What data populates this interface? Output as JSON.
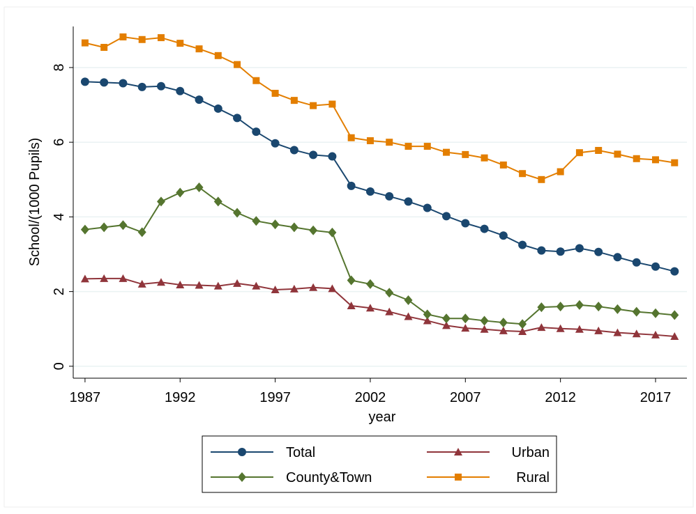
{
  "chart_data": {
    "type": "line",
    "x": [
      1987,
      1988,
      1989,
      1990,
      1991,
      1992,
      1993,
      1994,
      1995,
      1996,
      1997,
      1998,
      1999,
      2000,
      2001,
      2002,
      2003,
      2004,
      2005,
      2006,
      2007,
      2008,
      2009,
      2010,
      2011,
      2012,
      2013,
      2014,
      2015,
      2016,
      2017,
      2018
    ],
    "series": [
      {
        "name": "Total",
        "color": "#1a476f",
        "marker": "circle",
        "values": [
          7.62,
          7.6,
          7.58,
          7.48,
          7.5,
          7.37,
          7.14,
          6.9,
          6.65,
          6.28,
          5.97,
          5.79,
          5.66,
          5.62,
          4.83,
          4.68,
          4.55,
          4.41,
          4.24,
          4.02,
          3.83,
          3.68,
          3.5,
          3.25,
          3.1,
          3.07,
          3.16,
          3.06,
          2.92,
          2.78,
          2.67,
          2.54
        ]
      },
      {
        "name": "Urban",
        "color": "#90353b",
        "marker": "triangle",
        "values": [
          2.34,
          2.35,
          2.35,
          2.2,
          2.25,
          2.18,
          2.17,
          2.15,
          2.22,
          2.15,
          2.05,
          2.07,
          2.11,
          2.08,
          1.62,
          1.56,
          1.46,
          1.33,
          1.22,
          1.09,
          1.02,
          0.99,
          0.95,
          0.93,
          1.04,
          1.01,
          0.99,
          0.95,
          0.9,
          0.87,
          0.84,
          0.8
        ]
      },
      {
        "name": "County&Town",
        "color": "#55752f",
        "marker": "diamond",
        "values": [
          3.66,
          3.72,
          3.78,
          3.59,
          4.41,
          4.65,
          4.79,
          4.41,
          4.11,
          3.89,
          3.8,
          3.72,
          3.64,
          3.58,
          2.3,
          2.2,
          1.97,
          1.77,
          1.39,
          1.28,
          1.28,
          1.22,
          1.17,
          1.13,
          1.58,
          1.6,
          1.64,
          1.6,
          1.53,
          1.46,
          1.42,
          1.37
        ]
      },
      {
        "name": "Rural",
        "color": "#e37e00",
        "marker": "square",
        "values": [
          8.66,
          8.54,
          8.82,
          8.75,
          8.8,
          8.65,
          8.5,
          8.32,
          8.08,
          7.65,
          7.31,
          7.12,
          6.98,
          7.02,
          6.12,
          6.04,
          6.0,
          5.89,
          5.89,
          5.73,
          5.67,
          5.58,
          5.39,
          5.16,
          5.0,
          5.21,
          5.72,
          5.78,
          5.68,
          5.56,
          5.53,
          5.45
        ]
      }
    ],
    "x_label": "year",
    "y_label": "School/(1000 Pupils)",
    "xlim": [
      1986.38,
      2018.65
    ],
    "xticks": [
      1987,
      1992,
      1997,
      2002,
      2007,
      2012,
      2017
    ],
    "ylim": [
      -0.32,
      9.1
    ],
    "yticks": [
      0,
      2,
      4,
      6,
      8
    ],
    "grid": true,
    "legend": "bottom"
  }
}
